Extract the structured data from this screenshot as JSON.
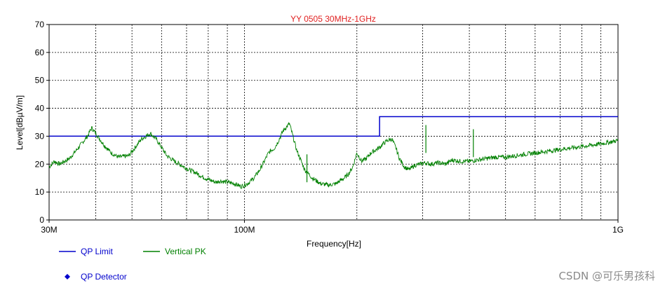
{
  "chart_data": {
    "type": "line",
    "title": "YY 0505 30MHz-1GHz",
    "xlabel": "Frequency[Hz]",
    "ylabel": "Level[dBµV/m]",
    "xscale": "log",
    "xlim": [
      30,
      1000
    ],
    "ylim": [
      0,
      70
    ],
    "grid": true,
    "x_tick_labels": [
      "30M",
      "100M",
      "1G"
    ],
    "y_ticks": [
      0,
      10,
      20,
      30,
      40,
      50,
      60,
      70
    ],
    "series": [
      {
        "name": "QP Limit",
        "color": "#0000cc",
        "step": true,
        "x": [
          30,
          230,
          230,
          1000
        ],
        "values": [
          30,
          30,
          37,
          37
        ]
      },
      {
        "name": "Vertical PK",
        "color": "#008000",
        "x": [
          30,
          31,
          32,
          34,
          36,
          38,
          39,
          40,
          42,
          44,
          46,
          49,
          51,
          53,
          56,
          58,
          60,
          62,
          65,
          68,
          71,
          74,
          77,
          80,
          82,
          84,
          86,
          90,
          94,
          98,
          102,
          106,
          110,
          113,
          116,
          118,
          120,
          123,
          127,
          132,
          138,
          145,
          152,
          160,
          168,
          176,
          180,
          185,
          190,
          195,
          200,
          206,
          212,
          218,
          224,
          230,
          236,
          242,
          248,
          254,
          260,
          268,
          276,
          285,
          295,
          305,
          315,
          330,
          345,
          360,
          380,
          400,
          420,
          445,
          470,
          500,
          530,
          560,
          600,
          640,
          680,
          720,
          770,
          820,
          870,
          920,
          960,
          1000
        ],
        "values": [
          19,
          21,
          20,
          22,
          26,
          30,
          33,
          31,
          27,
          24,
          22.5,
          23,
          26,
          29,
          31,
          29,
          26,
          23,
          21,
          19.5,
          18,
          17,
          15.5,
          14.5,
          14,
          13.5,
          14,
          13.5,
          13,
          12,
          13,
          15,
          18,
          21,
          24,
          25,
          25.5,
          28,
          32,
          34.5,
          25,
          18,
          15,
          13,
          12.5,
          13,
          14,
          15,
          16.5,
          19,
          24,
          21,
          22,
          24,
          25,
          26,
          27.5,
          28.5,
          29,
          26,
          22,
          19,
          18,
          19.5,
          20,
          20.5,
          20,
          20.5,
          20,
          21.5,
          21,
          21,
          21.5,
          22,
          22.5,
          22.5,
          23,
          23.5,
          24,
          24.5,
          25,
          25.5,
          26,
          26.5,
          27,
          27.5,
          28,
          28.5
        ]
      }
    ],
    "spikes": [
      {
        "x": 147,
        "y": 23.5
      },
      {
        "x": 306,
        "y": 34
      },
      {
        "x": 410,
        "y": 32.5
      }
    ],
    "legend": [
      {
        "label": "QP Limit",
        "color": "#0000cc",
        "marker": "line"
      },
      {
        "label": "Vertical PK",
        "color": "#008000",
        "marker": "line"
      },
      {
        "label": "QP Detector",
        "color": "#0000cc",
        "marker": "diamond"
      }
    ],
    "legend_position": "bottom-left"
  },
  "watermark": "CSDN @可乐男孩科"
}
